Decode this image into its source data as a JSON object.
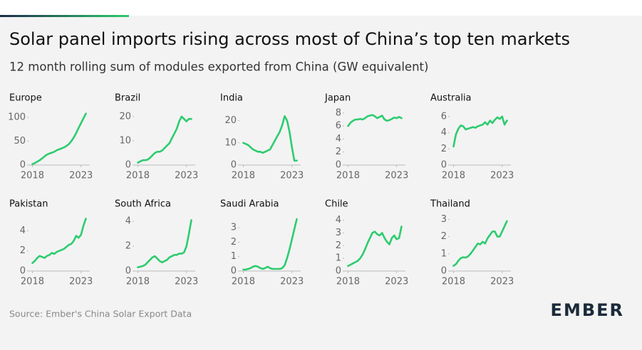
{
  "title": "Solar panel imports rising across most of China’s top ten markets",
  "subtitle": "12 month rolling sum of modules exported from China (GW equivalent)",
  "source": "Source: Ember's China Solar Export Data",
  "logo": "EMBER",
  "chart_data": [
    {
      "type": "line",
      "title": "Europe",
      "color": "#2dcc6f",
      "xlim": [
        2017.6,
        2023.9
      ],
      "xticks": [
        2018,
        2023
      ],
      "ylim": [
        0,
        112
      ],
      "yticks": [
        0,
        50,
        100
      ],
      "x": [
        2018,
        2018.25,
        2018.5,
        2018.75,
        2019,
        2019.25,
        2019.5,
        2019.75,
        2020,
        2020.25,
        2020.5,
        2020.75,
        2021,
        2021.25,
        2021.5,
        2021.75,
        2022,
        2022.25,
        2022.5,
        2022.75,
        2023,
        2023.25,
        2023.5
      ],
      "values": [
        2,
        4,
        7,
        10,
        14,
        18,
        22,
        24,
        26,
        28,
        31,
        33,
        35,
        37,
        40,
        44,
        50,
        58,
        67,
        78,
        88,
        98,
        108
      ]
    },
    {
      "type": "line",
      "title": "Brazil",
      "color": "#2dcc6f",
      "xlim": [
        2017.6,
        2023.9
      ],
      "xticks": [
        2018,
        2023
      ],
      "ylim": [
        0,
        22
      ],
      "yticks": [
        0,
        10,
        20
      ],
      "x": [
        2018,
        2018.25,
        2018.5,
        2018.75,
        2019,
        2019.25,
        2019.5,
        2019.75,
        2020,
        2020.25,
        2020.5,
        2020.75,
        2021,
        2021.25,
        2021.5,
        2021.75,
        2022,
        2022.25,
        2022.5,
        2022.75,
        2023,
        2023.25,
        2023.5
      ],
      "values": [
        1,
        1.5,
        2,
        2,
        2.2,
        3,
        4,
        5,
        5.5,
        5.5,
        6,
        7,
        8,
        9,
        11,
        13,
        15,
        18,
        20,
        19,
        18,
        19,
        19
      ]
    },
    {
      "type": "line",
      "title": "India",
      "color": "#2dcc6f",
      "xlim": [
        2017.6,
        2023.9
      ],
      "xticks": [
        2018,
        2023
      ],
      "ylim": [
        0,
        24
      ],
      "yticks": [
        0,
        10,
        20
      ],
      "x": [
        2018,
        2018.25,
        2018.5,
        2018.75,
        2019,
        2019.25,
        2019.5,
        2019.75,
        2020,
        2020.25,
        2020.5,
        2020.75,
        2021,
        2021.25,
        2021.5,
        2021.75,
        2022,
        2022.25,
        2022.5,
        2022.75,
        2023,
        2023.25,
        2023.5
      ],
      "values": [
        10,
        9.5,
        9,
        8,
        7,
        6.5,
        6,
        6,
        5.5,
        6,
        6.5,
        7,
        9,
        11,
        13,
        15,
        18,
        22,
        20,
        15,
        8,
        2,
        2
      ]
    },
    {
      "type": "line",
      "title": "Japan",
      "color": "#2dcc6f",
      "xlim": [
        2017.6,
        2023.9
      ],
      "xticks": [
        2018,
        2023
      ],
      "ylim": [
        0,
        8.2
      ],
      "yticks": [
        0,
        2,
        4,
        6,
        8
      ],
      "x": [
        2018,
        2018.25,
        2018.5,
        2018.75,
        2019,
        2019.25,
        2019.5,
        2019.75,
        2020,
        2020.25,
        2020.5,
        2020.75,
        2021,
        2021.25,
        2021.5,
        2021.75,
        2022,
        2022.25,
        2022.5,
        2022.75,
        2023,
        2023.25,
        2023.5
      ],
      "values": [
        6,
        6.5,
        6.8,
        7,
        7,
        7.1,
        7,
        7.2,
        7.5,
        7.6,
        7.7,
        7.5,
        7.2,
        7.4,
        7.6,
        7,
        6.8,
        6.9,
        7.1,
        7.3,
        7.2,
        7.4,
        7.2
      ]
    },
    {
      "type": "line",
      "title": "Australia",
      "color": "#2dcc6f",
      "xlim": [
        2017.6,
        2023.9
      ],
      "xticks": [
        2018,
        2023
      ],
      "ylim": [
        0,
        6.6
      ],
      "yticks": [
        0,
        2,
        4,
        6
      ],
      "x": [
        2018,
        2018.25,
        2018.5,
        2018.75,
        2019,
        2019.25,
        2019.5,
        2019.75,
        2020,
        2020.25,
        2020.5,
        2020.75,
        2021,
        2021.25,
        2021.5,
        2021.75,
        2022,
        2022.25,
        2022.5,
        2022.75,
        2023,
        2023.25,
        2023.5
      ],
      "values": [
        2.3,
        3.8,
        4.5,
        4.9,
        4.8,
        4.4,
        4.5,
        4.6,
        4.7,
        4.6,
        4.8,
        4.9,
        5.0,
        5.3,
        5.0,
        5.5,
        5.2,
        5.6,
        5.9,
        5.7,
        6,
        5,
        5.5
      ]
    },
    {
      "type": "line",
      "title": "Pakistan",
      "color": "#2dcc6f",
      "xlim": [
        2017.6,
        2023.9
      ],
      "xticks": [
        2018,
        2023
      ],
      "ylim": [
        0,
        5.3
      ],
      "yticks": [
        0,
        2,
        4
      ],
      "x": [
        2018,
        2018.25,
        2018.5,
        2018.75,
        2019,
        2019.25,
        2019.5,
        2019.75,
        2020,
        2020.25,
        2020.5,
        2020.75,
        2021,
        2021.25,
        2021.5,
        2021.75,
        2022,
        2022.25,
        2022.5,
        2022.75,
        2023,
        2023.25,
        2023.5
      ],
      "values": [
        0.8,
        1.0,
        1.3,
        1.5,
        1.4,
        1.3,
        1.5,
        1.6,
        1.8,
        1.7,
        1.9,
        2.0,
        2.1,
        2.2,
        2.4,
        2.6,
        2.7,
        3.0,
        3.5,
        3.3,
        3.6,
        4.5,
        5.2
      ]
    },
    {
      "type": "line",
      "title": "South Africa",
      "color": "#2dcc6f",
      "xlim": [
        2017.6,
        2023.9
      ],
      "xticks": [
        2018,
        2023
      ],
      "ylim": [
        0,
        4.3
      ],
      "yticks": [
        0,
        2,
        4
      ],
      "x": [
        2018,
        2018.25,
        2018.5,
        2018.75,
        2019,
        2019.25,
        2019.5,
        2019.75,
        2020,
        2020.25,
        2020.5,
        2020.75,
        2021,
        2021.25,
        2021.5,
        2021.75,
        2022,
        2022.25,
        2022.5,
        2022.75,
        2023,
        2023.25,
        2023.5
      ],
      "values": [
        0.3,
        0.35,
        0.4,
        0.5,
        0.7,
        0.9,
        1.1,
        1.2,
        1.0,
        0.8,
        0.7,
        0.8,
        0.9,
        1.1,
        1.2,
        1.3,
        1.3,
        1.4,
        1.4,
        1.5,
        2.0,
        3.0,
        4.1
      ]
    },
    {
      "type": "line",
      "title": "Saudi Arabia",
      "color": "#2dcc6f",
      "xlim": [
        2017.6,
        2023.9
      ],
      "xticks": [
        2018,
        2023
      ],
      "ylim": [
        0,
        3.7
      ],
      "yticks": [
        0,
        1,
        2,
        3
      ],
      "x": [
        2018,
        2018.25,
        2018.5,
        2018.75,
        2019,
        2019.25,
        2019.5,
        2019.75,
        2020,
        2020.25,
        2020.5,
        2020.75,
        2021,
        2021.25,
        2021.5,
        2021.75,
        2022,
        2022.25,
        2022.5,
        2022.75,
        2023,
        2023.25,
        2023.5
      ],
      "values": [
        0.1,
        0.1,
        0.15,
        0.2,
        0.3,
        0.35,
        0.3,
        0.2,
        0.15,
        0.2,
        0.3,
        0.2,
        0.15,
        0.15,
        0.15,
        0.15,
        0.2,
        0.4,
        0.9,
        1.5,
        2.2,
        2.9,
        3.6
      ]
    },
    {
      "type": "line",
      "title": "Chile",
      "color": "#2dcc6f",
      "xlim": [
        2017.6,
        2023.9
      ],
      "xticks": [
        2018,
        2023
      ],
      "ylim": [
        0,
        4.2
      ],
      "yticks": [
        0,
        1,
        2,
        3,
        4
      ],
      "x": [
        2018,
        2018.25,
        2018.5,
        2018.75,
        2019,
        2019.25,
        2019.5,
        2019.75,
        2020,
        2020.25,
        2020.5,
        2020.75,
        2021,
        2021.25,
        2021.5,
        2021.75,
        2022,
        2022.25,
        2022.5,
        2022.75,
        2023,
        2023.25,
        2023.5
      ],
      "values": [
        0.4,
        0.5,
        0.6,
        0.7,
        0.8,
        1.0,
        1.3,
        1.7,
        2.2,
        2.6,
        3.0,
        3.1,
        2.9,
        2.8,
        3.0,
        2.6,
        2.3,
        2.1,
        2.6,
        2.8,
        2.5,
        2.6,
        3.5
      ]
    },
    {
      "type": "line",
      "title": "Thailand",
      "color": "#2dcc6f",
      "xlim": [
        2017.6,
        2023.9
      ],
      "xticks": [
        2018,
        2023
      ],
      "ylim": [
        0,
        3.1
      ],
      "yticks": [
        0,
        1,
        2,
        3
      ],
      "x": [
        2018,
        2018.25,
        2018.5,
        2018.75,
        2019,
        2019.25,
        2019.5,
        2019.75,
        2020,
        2020.25,
        2020.5,
        2020.75,
        2021,
        2021.25,
        2021.5,
        2021.75,
        2022,
        2022.25,
        2022.5,
        2022.75,
        2023,
        2023.25,
        2023.5
      ],
      "values": [
        0.3,
        0.4,
        0.6,
        0.75,
        0.8,
        0.78,
        0.85,
        1.0,
        1.2,
        1.4,
        1.6,
        1.55,
        1.7,
        1.6,
        1.9,
        2.1,
        2.3,
        2.3,
        2.0,
        2.0,
        2.3,
        2.6,
        2.9
      ]
    }
  ]
}
